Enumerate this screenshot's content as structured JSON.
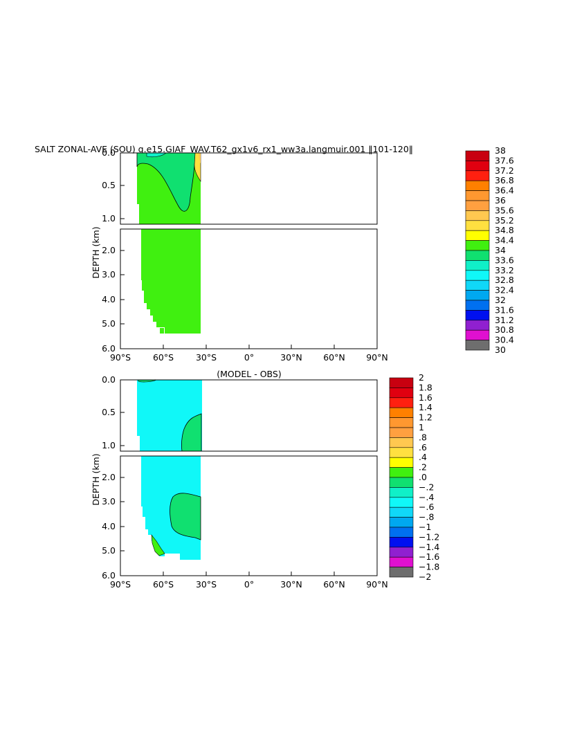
{
  "title": "SALT ZONAL-AVE (SOU) g.e15.GIAF_WAV.T62_gx1v6_rx1_ww3a.langmuir.001 ‖101-120‖",
  "diff_title": "(MODEL - OBS)",
  "ylabel": "DEPTH (km)",
  "xticks": [
    "90°S",
    "60°S",
    "30°S",
    "0°",
    "30°N",
    "60°N",
    "90°N"
  ],
  "yticks_upper": [
    "0.0",
    "0.5",
    "1.0"
  ],
  "yticks_lower": [
    "2.0",
    "3.0",
    "4.0",
    "5.0",
    "6.0"
  ],
  "colors": {
    "salt": [
      "#6e6e6e",
      "#d2d2d2",
      "#e010d0",
      "#9020d0",
      "#0010f0",
      "#0070f0",
      "#00a8f0",
      "#10d8f8",
      "#10f8f8",
      "#10f0c8",
      "#10e070",
      "#40f010",
      "#ffff00",
      "#ffe040",
      "#ffc850",
      "#ffa040",
      "#ff9830",
      "#ff8000",
      "#ff2010",
      "#e00010",
      "#c80010"
    ],
    "diff": [
      "#6e6e6e",
      "#d2d2d2",
      "#e010d0",
      "#9020d0",
      "#0010f0",
      "#0070f0",
      "#00a8f0",
      "#10d8f8",
      "#10f8f8",
      "#10f0c8",
      "#10e070",
      "#40f010",
      "#ffff00",
      "#ffe040",
      "#ffc850",
      "#ffa040",
      "#ff9830",
      "#ff8000",
      "#ff2010",
      "#e00010",
      "#c80010"
    ]
  },
  "chart_data": [
    {
      "type": "heatmap",
      "title": "SALT ZONAL-AVE (SOU) g.e15.GIAF_WAV.T62_gx1v6_rx1_ww3a.langmuir.001 ‖101-120‖",
      "ylabel": "DEPTH (km)",
      "xlim": [
        -90,
        90
      ],
      "ylim": [
        6.0,
        0.0
      ],
      "data_extent_lat": [
        -78,
        -34
      ],
      "colorbar_levels": [
        "38",
        "37.6",
        "37.2",
        "36.8",
        "36.4",
        "36",
        "35.6",
        "35.2",
        "34.8",
        "34.4",
        "34",
        "33.6",
        "33.2",
        "32.8",
        "32.4",
        "32",
        "31.6",
        "31.2",
        "30.8",
        "30.4",
        "30"
      ],
      "dominant_value_range": [
        34.4,
        34.8
      ],
      "features": [
        "34.0-34.4 band near surface 75S-35S down to ~1 km",
        "34.8+ small patch near surface at ~35S"
      ]
    },
    {
      "type": "heatmap",
      "title": "(MODEL - OBS)",
      "ylabel": "DEPTH (km)",
      "xlim": [
        -90,
        90
      ],
      "ylim": [
        6.0,
        0.0
      ],
      "data_extent_lat": [
        -78,
        -34
      ],
      "colorbar_levels": [
        "2",
        "1.8",
        "1.6",
        "1.4",
        "1.2",
        "1",
        ".8",
        ".6",
        ".4",
        ".2",
        ".0",
        "−.2",
        "−.4",
        "−.6",
        "−.8",
        "−1",
        "−1.2",
        "−1.4",
        "−1.6",
        "−1.8",
        "−2"
      ],
      "dominant_value_range": [
        -0.2,
        0.0
      ],
      "features": [
        "0.0-0.2 patch ~0.5-1.1 km near 35-45S",
        "0.0-0.2 patch ~2.5-4.5 km near 35-50S",
        "0.2-0.4 patch ~4.5-5.4 km near 55S"
      ]
    }
  ]
}
